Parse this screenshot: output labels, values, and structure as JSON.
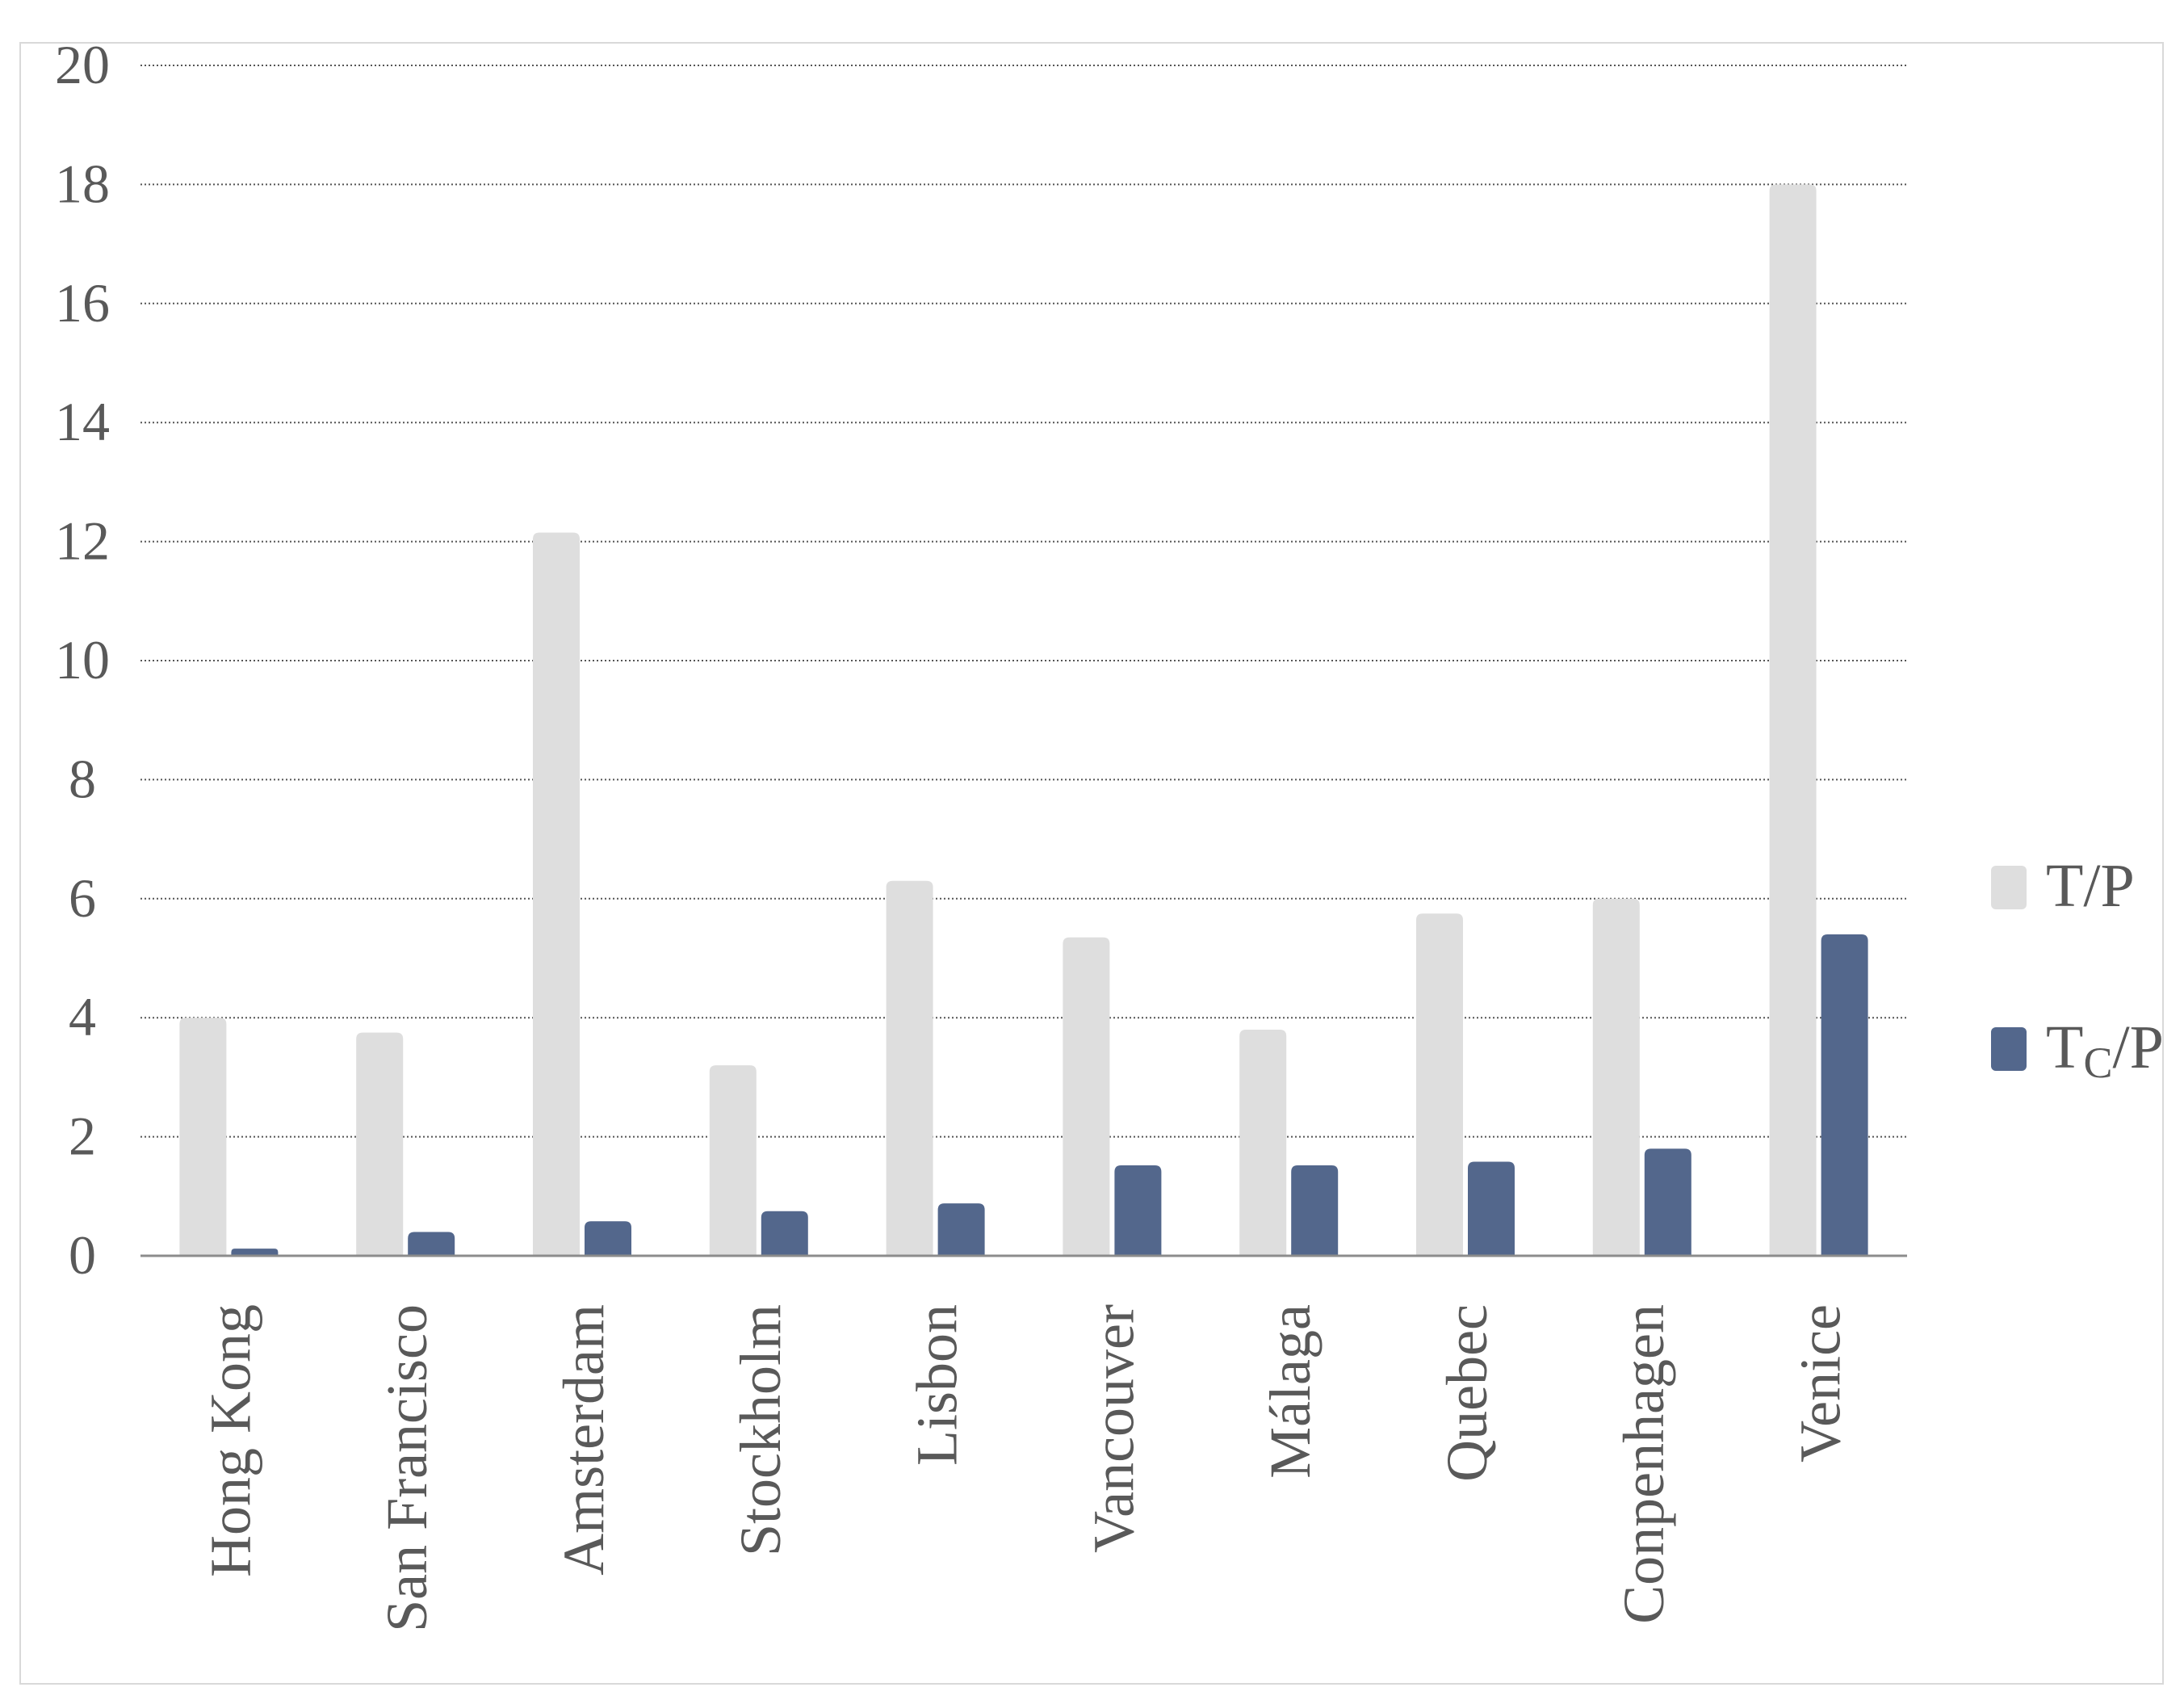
{
  "chart_data": {
    "type": "bar",
    "title": "",
    "xlabel": "",
    "ylabel": "",
    "ylim": [
      0,
      20
    ],
    "yticks": [
      0,
      2,
      4,
      6,
      8,
      10,
      12,
      14,
      16,
      18,
      20
    ],
    "grid": true,
    "legend_position": "right",
    "categories": [
      "Hong Kong",
      "San Francisco",
      "Amsterdam",
      "Stockholm",
      "Lisbon",
      "Vancouver",
      "Málaga",
      "Quebec",
      "Conpenhagen",
      "Venice"
    ],
    "series": [
      {
        "name": "T/P",
        "legend_main": "T/P",
        "color": "#dedede",
        "values": [
          4.0,
          3.75,
          12.15,
          3.2,
          6.3,
          5.35,
          3.8,
          5.75,
          6.0,
          18.0
        ]
      },
      {
        "name": "TC/P",
        "legend_main": "T",
        "legend_sub": "C",
        "legend_tail": "/P",
        "color": "#53678c",
        "values": [
          0.12,
          0.4,
          0.58,
          0.75,
          0.88,
          1.52,
          1.52,
          1.58,
          1.8,
          5.4
        ]
      }
    ]
  }
}
